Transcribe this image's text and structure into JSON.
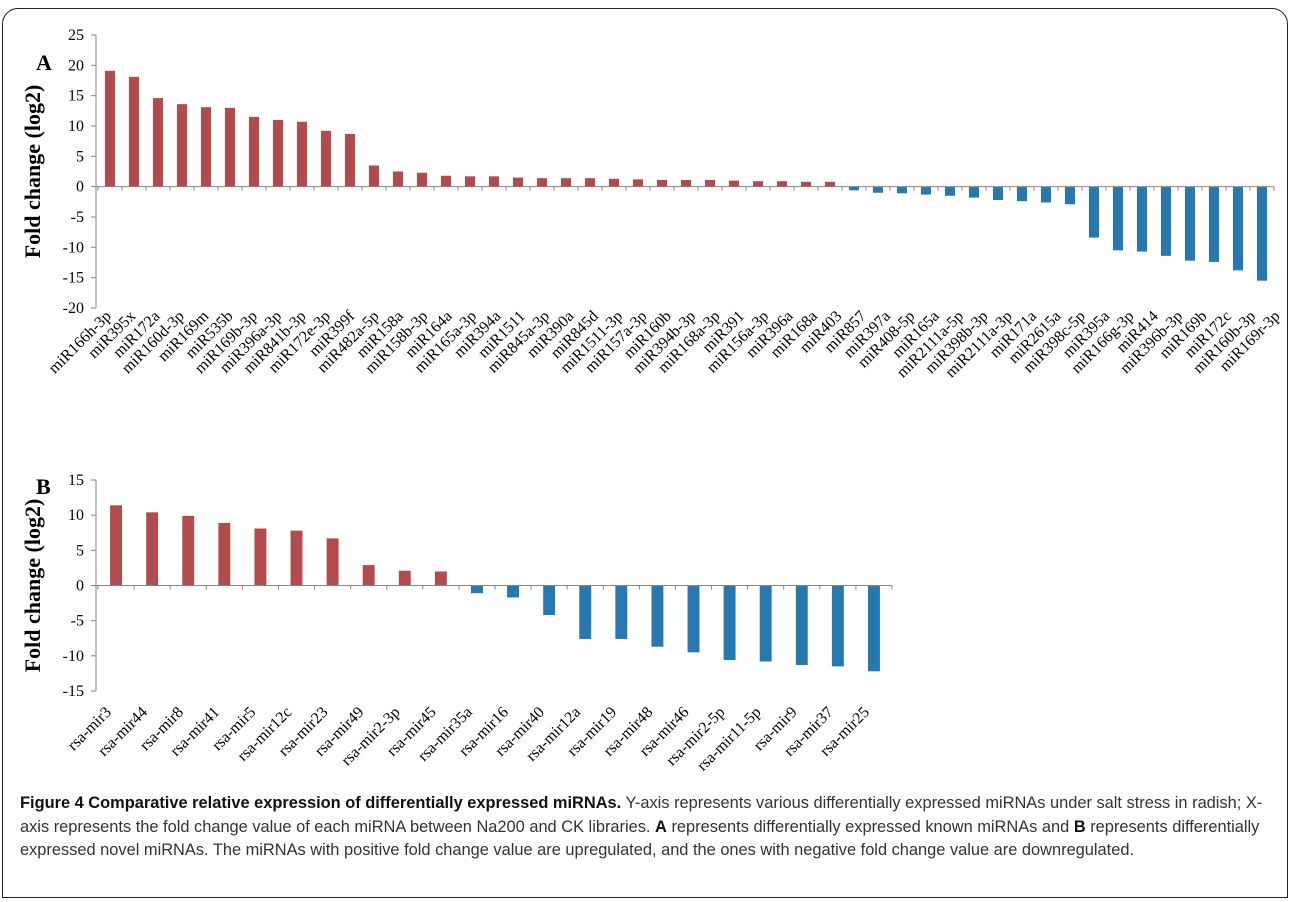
{
  "colors": {
    "up": "#B24B4D",
    "down": "#2678AE",
    "axis": "#868686"
  },
  "chart_data": [
    {
      "type": "bar",
      "panel_label": "A",
      "ylabel": "Fold change (log2)",
      "ylim": [
        -20,
        25
      ],
      "yticks": [
        -20,
        -15,
        -10,
        -5,
        0,
        5,
        10,
        15,
        20,
        25
      ],
      "categories": [
        "miR166h-3p",
        "miR395x",
        "miR172a",
        "miR160d-3p",
        "miR169m",
        "miR535b",
        "miR169b-3p",
        "miR396a-3p",
        "miR841b-3p",
        "miR172e-3p",
        "miR399f",
        "miR482a-5p",
        "miR158a",
        "miR158b-3p",
        "miR164a",
        "miR165a-3p",
        "miR394a",
        "miR1511",
        "miR845a-3p",
        "miR390a",
        "miR845d",
        "miR1511-3p",
        "miR157a-3p",
        "miR160b",
        "miR394b-3p",
        "miR168a-3p",
        "miR391",
        "miR156a-3p",
        "miR396a",
        "miR168a",
        "miR403",
        "miR857",
        "miR397a",
        "miR408-5p",
        "miR165a",
        "miR2111a-5p",
        "miR398b-3p",
        "miR2111a-3p",
        "miR171a",
        "miR2615a",
        "miR398c-5p",
        "miR395a",
        "miR166g-3p",
        "miR414",
        "miR396b-3p",
        "miR169b",
        "miR172c",
        "miR160b-3p",
        "miR169r-3p"
      ],
      "values": [
        19.1,
        18.1,
        14.6,
        13.6,
        13.1,
        13.0,
        11.5,
        11.0,
        10.7,
        9.2,
        8.7,
        3.5,
        2.5,
        2.3,
        1.8,
        1.7,
        1.7,
        1.5,
        1.4,
        1.4,
        1.4,
        1.3,
        1.2,
        1.1,
        1.1,
        1.1,
        1.0,
        0.9,
        0.9,
        0.8,
        0.8,
        -0.6,
        -1.0,
        -1.1,
        -1.3,
        -1.5,
        -1.8,
        -2.2,
        -2.4,
        -2.6,
        -2.9,
        -8.4,
        -10.5,
        -10.7,
        -11.4,
        -12.2,
        -12.4,
        -13.8,
        -15.5
      ]
    },
    {
      "type": "bar",
      "panel_label": "B",
      "ylabel": "Fold change (log2)",
      "ylim": [
        -15,
        15
      ],
      "yticks": [
        -15,
        -10,
        -5,
        0,
        5,
        10,
        15
      ],
      "categories": [
        "rsa-mir3",
        "rsa-mir44",
        "rsa-mir8",
        "rsa-mir41",
        "rsa-mir5",
        "rsa-mir12c",
        "rsa-mir23",
        "rsa-mir49",
        "rsa-mir2-3p",
        "rsa-mir45",
        "rsa-mir35a",
        "rsa-mir16",
        "rsa-mir40",
        "rsa-mir12a",
        "rsa-mir19",
        "rsa-mir48",
        "rsa-mir46",
        "rsa-mir2-5p",
        "rsa-mir11-5p",
        "rsa-mir9",
        "rsa-mir37",
        "rsa-mir25"
      ],
      "values": [
        11.4,
        10.4,
        9.9,
        8.9,
        8.1,
        7.8,
        6.7,
        2.9,
        2.1,
        2.0,
        -1.1,
        -1.7,
        -4.2,
        -7.6,
        -7.6,
        -8.7,
        -9.5,
        -10.6,
        -10.8,
        -11.3,
        -11.5,
        -12.2
      ]
    }
  ],
  "caption": {
    "title": "Figure 4 Comparative relative expression of differentially expressed miRNAs.",
    "text1": " Y-axis represents various differentially expressed miRNAs under salt stress in radish; X-axis represents the fold change value of each miRNA between Na200 and CK libraries. ",
    "label_a": "A",
    "text2": " represents differentially expressed known miRNAs and ",
    "label_b": "B",
    "text3": " represents differentially expressed novel miRNAs. The miRNAs with positive fold change value are upregulated, and the ones with negative fold change value are downregulated."
  }
}
